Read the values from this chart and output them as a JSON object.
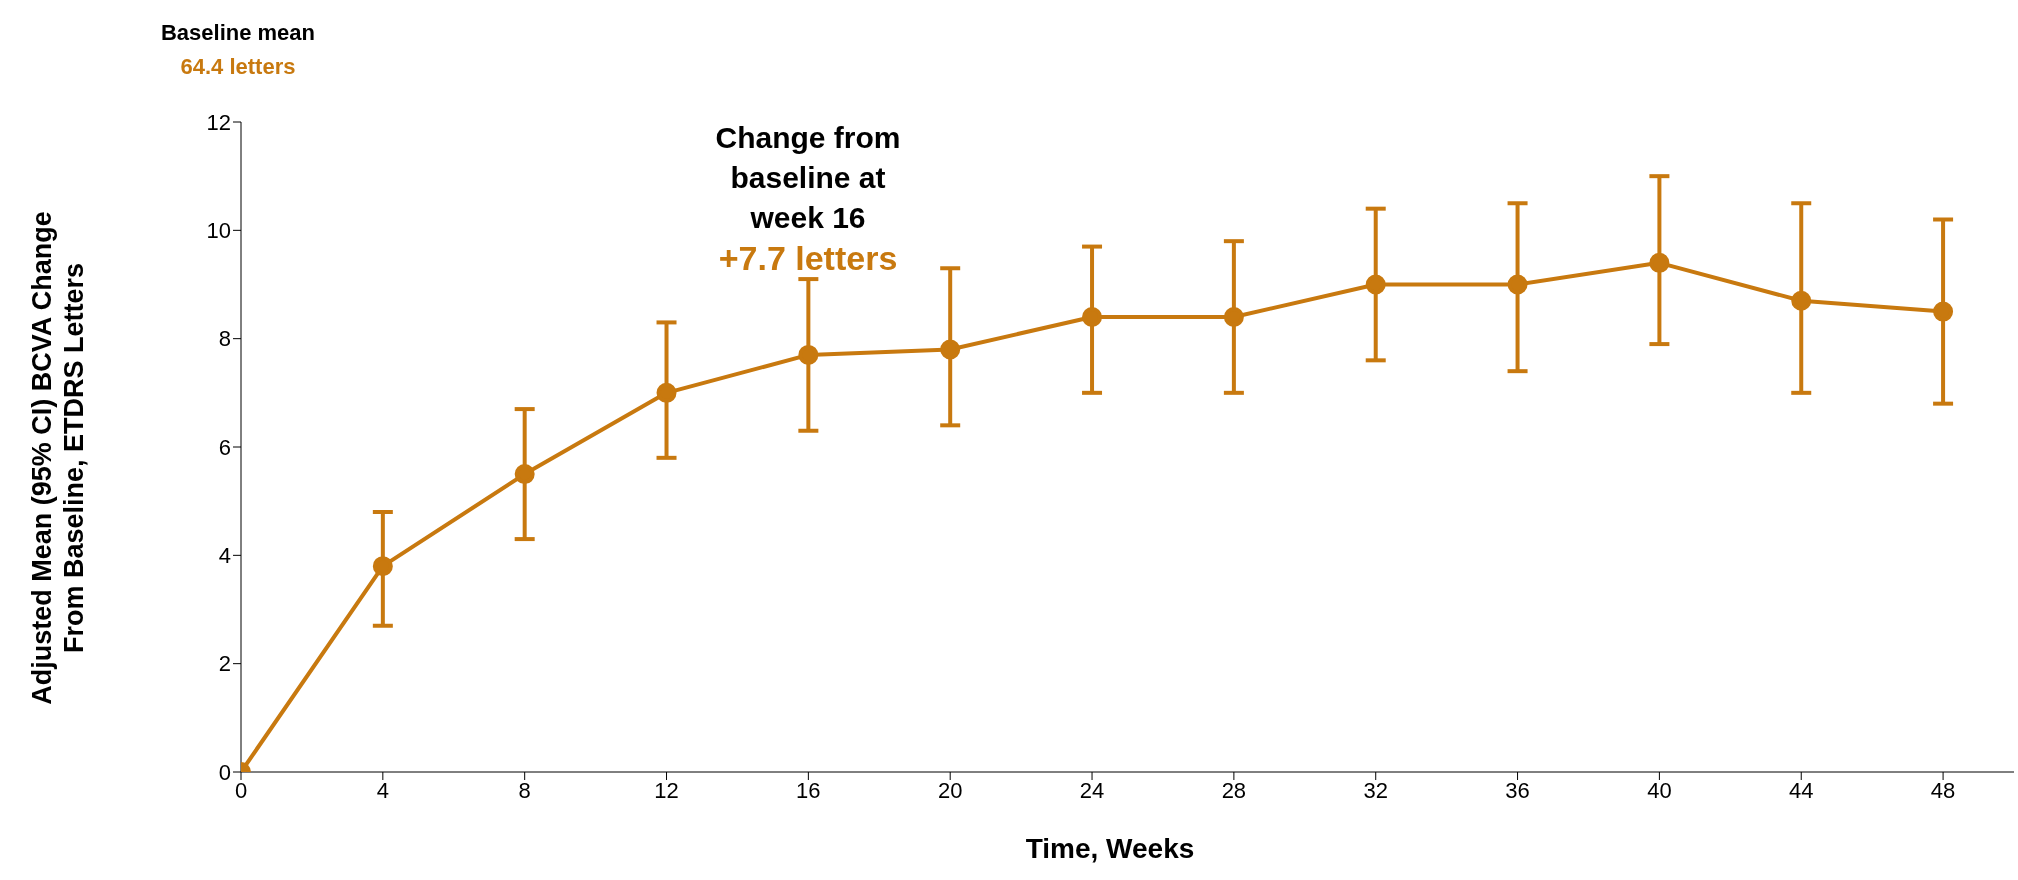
{
  "chart_data": {
    "type": "line",
    "xlabel": "Time, Weeks",
    "ylabel": "Adjusted Mean (95% CI) BCVA Change From Baseline, ETDRS Letters",
    "x": [
      0,
      4,
      8,
      12,
      16,
      20,
      24,
      28,
      32,
      36,
      40,
      44,
      48
    ],
    "series": [
      {
        "color": "#c8790f",
        "values": [
          0,
          3.8,
          5.5,
          7.0,
          7.7,
          7.8,
          8.4,
          8.4,
          9.0,
          9.0,
          9.4,
          8.7,
          8.5
        ],
        "errors": [
          null,
          [
            2.7,
            4.8
          ],
          [
            4.3,
            6.7
          ],
          [
            5.8,
            8.3
          ],
          [
            6.3,
            9.1
          ],
          [
            6.4,
            9.3
          ],
          [
            7.0,
            9.7
          ],
          [
            7.0,
            9.8
          ],
          [
            7.6,
            10.4
          ],
          [
            7.4,
            10.5
          ],
          [
            7.9,
            11.0
          ],
          [
            7.0,
            10.5
          ],
          [
            6.8,
            10.2
          ]
        ]
      }
    ],
    "xlim": [
      0,
      50
    ],
    "xticks": [
      0,
      4,
      8,
      12,
      16,
      20,
      24,
      28,
      32,
      36,
      40,
      44,
      48
    ],
    "ylim": [
      0,
      12
    ],
    "yticks": [
      0,
      2,
      4,
      6,
      8,
      10,
      12
    ],
    "grid": false,
    "legend": false,
    "marker": "circle",
    "line_style": "solid",
    "annotations": [
      "Baseline mean",
      "64.4 letters",
      "Change from baseline at week 16",
      "+7.7 letters"
    ]
  }
}
